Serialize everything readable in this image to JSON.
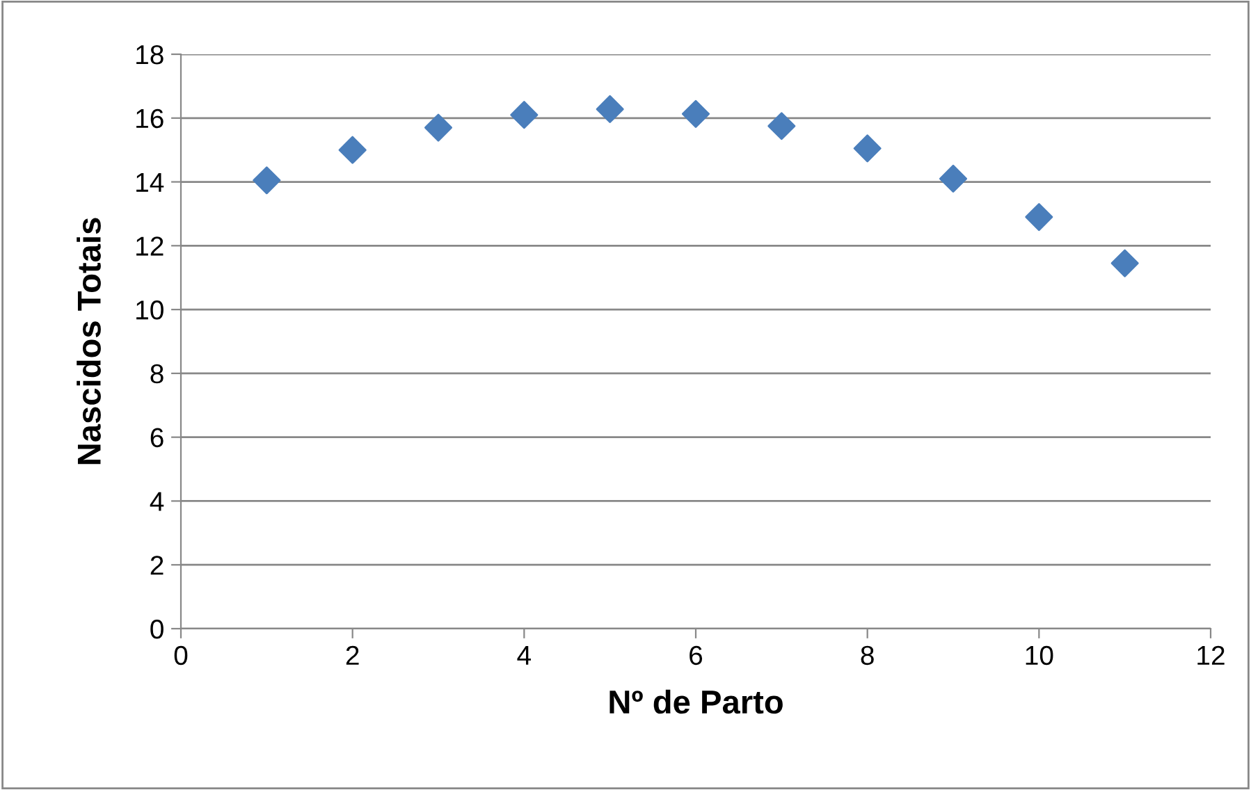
{
  "chart_data": {
    "type": "scatter",
    "xlabel": "Nº de Parto",
    "ylabel": "Nascidos Totais",
    "x": [
      1,
      2,
      3,
      4,
      5,
      6,
      7,
      8,
      9,
      10,
      11
    ],
    "series": [
      {
        "color": "#4a7ebb",
        "values": [
          14.05,
          15.0,
          15.7,
          16.1,
          16.28,
          16.13,
          15.75,
          15.05,
          14.1,
          12.9,
          11.45
        ]
      }
    ],
    "xlim": [
      0,
      12
    ],
    "xticks": [
      0,
      2,
      4,
      6,
      8,
      10,
      12
    ],
    "ylim": [
      0,
      18
    ],
    "yticks": [
      0,
      2,
      4,
      6,
      8,
      10,
      12,
      14,
      16,
      18
    ],
    "grid": "y",
    "marker": "diamond",
    "legend": false
  }
}
